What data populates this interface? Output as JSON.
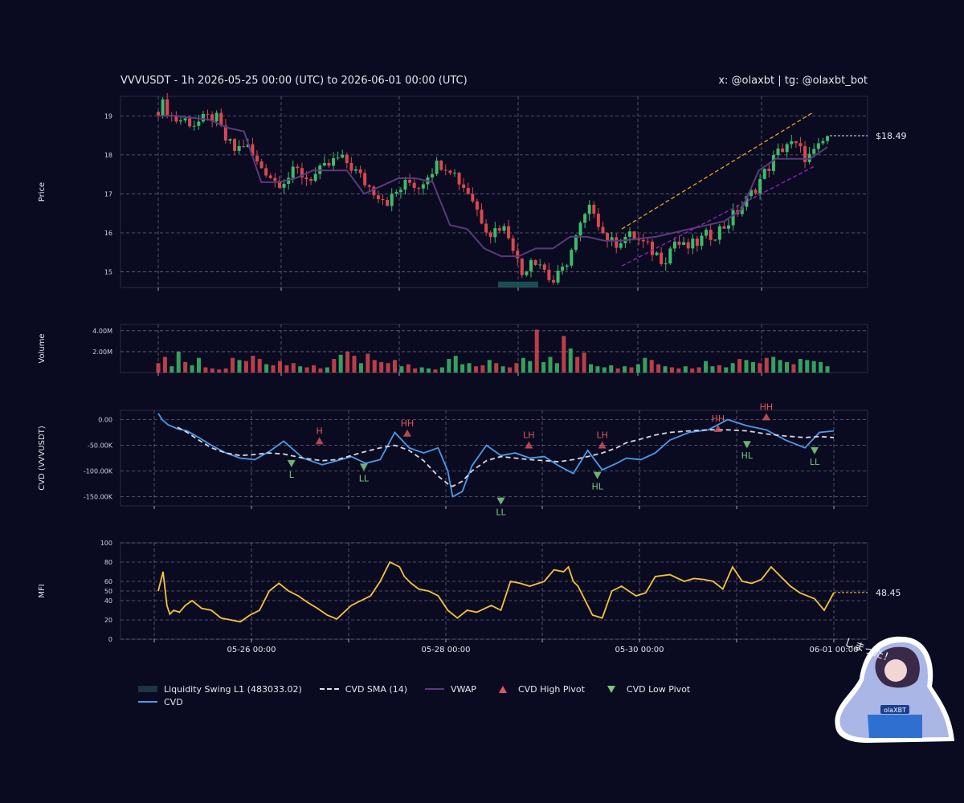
{
  "header": {
    "title": "VVVUSDT - 1h 2026-05-25 00:00 (UTC) to 2026-06-01 00:00 (UTC)",
    "credit": "x: @olaxbt | tg: @olaxbt_bot"
  },
  "colors": {
    "background": "#0a0b21",
    "up": "#3dbb6a",
    "down": "#d9484f",
    "cvd": "#4c9be8",
    "mfi": "#f5c33b",
    "vwap": "#5b3a7a",
    "channel_upper": "#f0a21b",
    "channel_lower": "#a020c0",
    "pivot_high": "#e0565b",
    "pivot_low": "#7ac77a"
  },
  "chart_data": [
    {
      "panel": "price",
      "type": "candlestick",
      "ylabel": "Price",
      "yticks": [
        "15",
        "16",
        "17",
        "18",
        "19"
      ],
      "ylim": [
        14.6,
        19.5
      ],
      "last_price_label": "$18.49",
      "close_path": [
        19.1,
        19.3,
        18.9,
        18.9,
        18.8,
        18.9,
        19.0,
        18.4,
        18.1,
        18.3,
        17.8,
        17.6,
        17.3,
        17.4,
        17.6,
        17.4,
        17.5,
        17.7,
        17.9,
        17.8,
        17.5,
        17.2,
        17.0,
        16.8,
        17.1,
        17.3,
        17.2,
        17.6,
        17.8,
        17.7,
        17.3,
        17.0,
        16.4,
        16.0,
        16.2,
        15.9,
        14.9,
        15.4,
        15.2,
        14.7,
        15.0,
        15.6,
        16.3,
        16.7,
        16.0,
        15.7,
        15.9,
        15.9,
        15.7,
        15.5,
        15.3,
        15.8,
        15.6,
        15.7,
        15.9,
        16.0,
        16.2,
        16.5,
        16.8,
        17.2,
        17.6,
        18.0,
        18.3,
        18.2,
        17.9,
        18.1,
        18.49
      ],
      "vwap_path": [
        19.0,
        19.0,
        18.95,
        18.9,
        18.7,
        18.6,
        17.3,
        17.3,
        17.4,
        17.6,
        17.6,
        17.6,
        17.0,
        17.2,
        17.4,
        17.4,
        17.3,
        16.2,
        16.1,
        15.6,
        15.4,
        15.4,
        15.6,
        15.6,
        15.9,
        15.9,
        15.8,
        15.8,
        15.85,
        15.9,
        16.0,
        16.1,
        16.2,
        16.3,
        16.6,
        17.6,
        17.9,
        17.9,
        17.9,
        18.2
      ],
      "trend_upper": {
        "start": [
          "05-29 13:00",
          16.1
        ],
        "end": [
          "05-31 18:00",
          19.1
        ]
      },
      "trend_lower": {
        "start": [
          "05-29 13:00",
          15.15
        ],
        "end": [
          "05-31 18:00",
          17.7
        ]
      },
      "liquidity_zone": {
        "from": "05-28 14:00",
        "to": "05-28 23:00",
        "low": 14.6,
        "high": 14.75
      }
    },
    {
      "panel": "volume",
      "type": "bar",
      "ylabel": "Volume",
      "yticks": [
        "2.00M",
        "4.00M"
      ],
      "ylim": [
        0,
        4.6
      ],
      "values_millions": [
        0.9,
        1.5,
        0.6,
        2.0,
        1.0,
        0.7,
        1.4,
        0.5,
        0.4,
        0.3,
        0.4,
        1.4,
        1.2,
        1.1,
        1.6,
        1.3,
        0.8,
        0.7,
        1.1,
        0.7,
        0.9,
        0.6,
        0.5,
        0.7,
        0.4,
        0.5,
        1.3,
        1.7,
        2.0,
        1.6,
        0.9,
        1.8,
        1.2,
        1.0,
        0.9,
        1.2,
        0.6,
        0.8,
        0.4,
        0.5,
        0.4,
        0.3,
        0.5,
        1.3,
        1.6,
        0.8,
        0.9,
        0.6,
        0.7,
        1.2,
        0.9,
        0.6,
        0.5,
        0.9,
        1.4,
        1.1,
        4.1,
        1.0,
        1.5,
        0.9,
        3.5,
        2.3,
        1.5,
        1.9,
        0.8,
        0.6,
        0.5,
        0.7,
        0.4,
        0.6,
        0.5,
        0.8,
        1.4,
        1.2,
        0.8,
        0.6,
        0.5,
        0.4,
        0.6,
        0.4,
        0.5,
        1.1,
        0.6,
        0.7,
        0.5,
        0.9,
        1.3,
        1.2,
        1.0,
        0.9,
        1.4,
        1.5,
        1.2,
        1.0,
        0.8,
        1.3,
        1.2,
        1.1,
        1.0,
        0.6
      ]
    },
    {
      "panel": "cvd",
      "type": "line",
      "ylabel": "CVD (VVVUSDT)",
      "yticks": [
        "-150.00K",
        "-100.00K",
        "-50.00K",
        "0.00"
      ],
      "ylim": [
        -168,
        18
      ],
      "x_day": [
        0,
        0.04,
        0.1,
        0.2,
        0.3,
        0.42,
        0.55,
        0.7,
        0.85,
        1.0,
        1.15,
        1.3,
        1.5,
        1.7,
        1.85,
        2.0,
        2.15,
        2.3,
        2.45,
        2.6,
        2.75,
        2.9,
        3.0,
        3.05,
        3.15,
        3.25,
        3.4,
        3.55,
        3.7,
        3.85,
        4.0,
        4.15,
        4.3,
        4.45,
        4.6,
        4.75,
        4.85,
        5.0,
        5.15,
        5.3,
        5.5,
        5.7,
        5.9,
        6.1,
        6.3,
        6.5,
        6.7,
        6.85,
        7.0
      ],
      "values_k": [
        12,
        0,
        -10,
        -18,
        -22,
        -35,
        -50,
        -65,
        -75,
        -78,
        -62,
        -42,
        -75,
        -88,
        -80,
        -72,
        -85,
        -78,
        -25,
        -55,
        -65,
        -55,
        -100,
        -150,
        -140,
        -90,
        -50,
        -70,
        -65,
        -75,
        -72,
        -90,
        -105,
        -60,
        -98,
        -85,
        -75,
        -78,
        -65,
        -40,
        -25,
        -20,
        0,
        -12,
        -20,
        -40,
        -55,
        -25,
        -22
      ],
      "sma_values_k": [
        null,
        null,
        null,
        -15,
        -25,
        -40,
        -55,
        -65,
        -70,
        -68,
        -65,
        -67,
        -75,
        -80,
        -78,
        -70,
        -62,
        -55,
        -50,
        -60,
        -80,
        -110,
        -125,
        -130,
        -120,
        -100,
        -80,
        -72,
        -75,
        -78,
        -80,
        -82,
        -78,
        -72,
        -65,
        -55,
        -45,
        -38,
        -30,
        -25,
        -22,
        -20,
        -20,
        -22,
        -28,
        -32,
        -35,
        -33,
        -35
      ],
      "pivots": [
        {
          "label": "L",
          "kind": "low",
          "day": 1.38,
          "value_k": -85
        },
        {
          "label": "H",
          "kind": "high",
          "day": 1.67,
          "value_k": -42
        },
        {
          "label": "LL",
          "kind": "low",
          "day": 2.13,
          "value_k": -92
        },
        {
          "label": "HH",
          "kind": "high",
          "day": 2.58,
          "value_k": -27
        },
        {
          "label": "LL",
          "kind": "low",
          "day": 3.55,
          "value_k": -158
        },
        {
          "label": "LH",
          "kind": "high",
          "day": 3.84,
          "value_k": -50
        },
        {
          "label": "HL",
          "kind": "low",
          "day": 4.55,
          "value_k": -108
        },
        {
          "label": "LH",
          "kind": "high",
          "day": 4.6,
          "value_k": -50
        },
        {
          "label": "HH",
          "kind": "high",
          "day": 5.8,
          "value_k": -18
        },
        {
          "label": "HL",
          "kind": "low",
          "day": 6.1,
          "value_k": -48
        },
        {
          "label": "HH",
          "kind": "high",
          "day": 6.3,
          "value_k": 5
        },
        {
          "label": "LL",
          "kind": "low",
          "day": 6.8,
          "value_k": -60
        }
      ]
    },
    {
      "panel": "mfi",
      "type": "line",
      "ylabel": "MFI",
      "yticks": [
        "0",
        "20",
        "40",
        "50",
        "60",
        "80",
        "100"
      ],
      "ylim": [
        0,
        100
      ],
      "last_value_label": "48.45",
      "x_day": [
        0,
        0.05,
        0.09,
        0.12,
        0.16,
        0.22,
        0.28,
        0.35,
        0.45,
        0.55,
        0.65,
        0.75,
        0.85,
        0.95,
        1.05,
        1.15,
        1.25,
        1.35,
        1.45,
        1.55,
        1.65,
        1.75,
        1.85,
        2.0,
        2.1,
        2.2,
        2.3,
        2.4,
        2.5,
        2.55,
        2.62,
        2.7,
        2.8,
        2.9,
        3.0,
        3.1,
        3.2,
        3.3,
        3.45,
        3.55,
        3.65,
        3.75,
        3.85,
        4.0,
        4.1,
        4.2,
        4.25,
        4.3,
        4.35,
        4.4,
        4.5,
        4.6,
        4.7,
        4.8,
        4.95,
        5.05,
        5.15,
        5.3,
        5.45,
        5.55,
        5.65,
        5.75,
        5.85,
        5.95,
        6.05,
        6.15,
        6.25,
        6.35,
        6.45,
        6.55,
        6.65,
        6.8,
        6.9,
        7.0
      ],
      "values": [
        50,
        70,
        35,
        26,
        30,
        28,
        35,
        40,
        32,
        30,
        22,
        20,
        18,
        25,
        30,
        50,
        58,
        50,
        45,
        38,
        32,
        25,
        21,
        35,
        40,
        45,
        60,
        80,
        75,
        65,
        58,
        52,
        50,
        45,
        30,
        22,
        30,
        28,
        35,
        30,
        60,
        58,
        55,
        60,
        72,
        70,
        75,
        60,
        55,
        45,
        25,
        22,
        50,
        55,
        45,
        48,
        65,
        67,
        60,
        63,
        62,
        60,
        52,
        75,
        60,
        58,
        62,
        75,
        65,
        55,
        48,
        42,
        30,
        48.45
      ]
    }
  ],
  "x_axis": {
    "ticks": [
      "05-26 00:00",
      "05-28 00:00",
      "05-30 00:00",
      "06-01 00:00"
    ]
  },
  "legend": [
    {
      "label": "Liquidity Swing L1 (483033.02)",
      "icon": "box"
    },
    {
      "label": "CVD SMA (14)",
      "icon": "dashed-line"
    },
    {
      "label": "VWAP",
      "icon": "line"
    },
    {
      "label": "CVD High Pivot",
      "icon": "triangle-up"
    },
    {
      "label": "CVD Low Pivot",
      "icon": "triangle-down"
    },
    {
      "label": "CVD",
      "icon": "line"
    }
  ],
  "mascot": {
    "text": "しまった！",
    "badge": "olaXBT"
  }
}
